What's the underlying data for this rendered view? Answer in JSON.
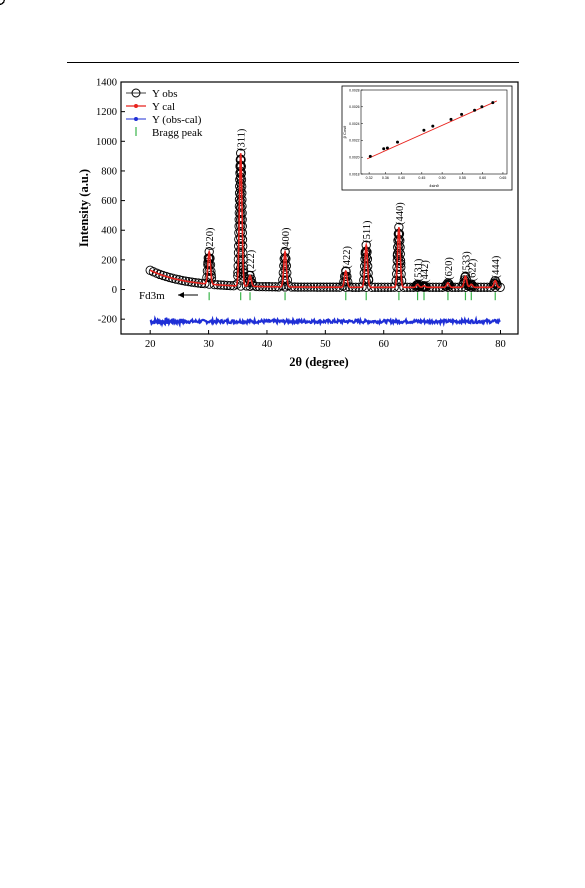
{
  "chart_data": [
    {
      "type": "line",
      "xlabel": "2θ (degree)",
      "ylabel": "Intensity (a.u.)",
      "xlim": [
        15,
        83
      ],
      "ylim": [
        -300,
        1400
      ],
      "xticks": [
        20,
        30,
        40,
        50,
        60,
        70,
        80
      ],
      "yticks": [
        -200,
        0,
        200,
        400,
        600,
        800,
        1000,
        1200,
        1400
      ],
      "legend_position": "top-left",
      "legend": [
        "Y obs",
        "Y cal",
        "Y (obs-cal)",
        "Bragg peak"
      ],
      "background": {
        "start": [
          20,
          130
        ],
        "end": [
          80,
          15
        ],
        "decay": 6
      },
      "difference_level": -215,
      "bragg_marker_level": -45,
      "phase_label": "Fd3m",
      "peaks": [
        {
          "hkl": "(220)",
          "x": 30.1,
          "y": 255
        },
        {
          "hkl": "(311)",
          "x": 35.5,
          "y": 920
        },
        {
          "hkl": "(222)",
          "x": 37.1,
          "y": 95
        },
        {
          "hkl": "(400)",
          "x": 43.1,
          "y": 255
        },
        {
          "hkl": "(422)",
          "x": 53.5,
          "y": 125
        },
        {
          "hkl": "(511)",
          "x": 57.0,
          "y": 300
        },
        {
          "hkl": "(440)",
          "x": 62.6,
          "y": 420
        },
        {
          "hkl": "(531)",
          "x": 65.8,
          "y": 35
        },
        {
          "hkl": "(442)",
          "x": 66.9,
          "y": 25
        },
        {
          "hkl": "(620)",
          "x": 71.0,
          "y": 45
        },
        {
          "hkl": "(533)",
          "x": 74.0,
          "y": 90
        },
        {
          "hkl": "(622)",
          "x": 75.0,
          "y": 35
        },
        {
          "hkl": "(444)",
          "x": 79.1,
          "y": 60
        }
      ],
      "colors": {
        "obs": "#000000",
        "cal": "#e8231d",
        "diff": "#1f2fd6",
        "bragg": "#3ab54a"
      }
    },
    {
      "type": "scatter",
      "xlabel": "4sinθ",
      "ylabel": "β Cosθ",
      "xlim": [
        0.3,
        0.66
      ],
      "ylim": [
        0.0018,
        0.0028
      ],
      "xticks": [
        0.32,
        0.36,
        0.4,
        0.45,
        0.5,
        0.55,
        0.6,
        0.65
      ],
      "xtick_labels": [
        "0.32",
        "0.36",
        "0.40",
        "0.45",
        "0.50",
        "0.55",
        "0.60",
        "0.65"
      ],
      "yticks": [
        0.0018,
        0.002,
        0.0022,
        0.0024,
        0.0026,
        0.0028
      ],
      "ytick_labels": [
        "0.0018",
        "0.0020",
        "0.0022",
        "0.0024",
        "0.0026",
        "0.0028"
      ],
      "points": [
        {
          "x": 0.323,
          "y": 0.00201
        },
        {
          "x": 0.356,
          "y": 0.0021
        },
        {
          "x": 0.365,
          "y": 0.00211
        },
        {
          "x": 0.39,
          "y": 0.00218
        },
        {
          "x": 0.455,
          "y": 0.00232
        },
        {
          "x": 0.477,
          "y": 0.00237
        },
        {
          "x": 0.522,
          "y": 0.00245
        },
        {
          "x": 0.548,
          "y": 0.00251
        },
        {
          "x": 0.58,
          "y": 0.00256
        },
        {
          "x": 0.598,
          "y": 0.0026
        },
        {
          "x": 0.625,
          "y": 0.00265
        }
      ],
      "fit": {
        "x": [
          0.315,
          0.635
        ],
        "y": [
          0.00198,
          0.00267
        ]
      },
      "colors": {
        "point": "#000000",
        "fit": "#e8231d"
      }
    }
  ]
}
